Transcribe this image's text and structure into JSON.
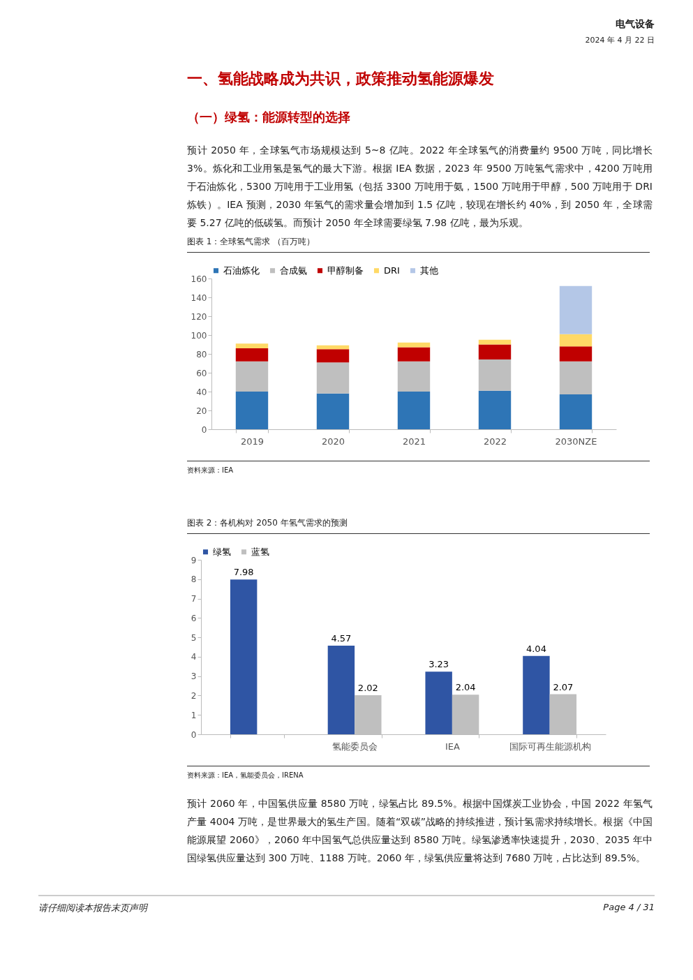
{
  "chart_data": [
    {
      "type": "bar",
      "title": "图表 1：全球氢气需求 （百万吨）",
      "stacked": true,
      "categories": [
        "2019",
        "2020",
        "2021",
        "2022",
        "2030NZE"
      ],
      "series": [
        {
          "name": "石油炼化",
          "color": "#2e75b6",
          "values": [
            40,
            38,
            40,
            41,
            37
          ]
        },
        {
          "name": "合成氨",
          "color": "#bfbfbf",
          "values": [
            32,
            33,
            32,
            33,
            35
          ]
        },
        {
          "name": "甲醇制备",
          "color": "#c00000",
          "values": [
            14,
            14,
            15,
            16,
            16
          ]
        },
        {
          "name": "DRI",
          "color": "#ffd966",
          "values": [
            5,
            4,
            5,
            5,
            13
          ]
        },
        {
          "name": "其他",
          "color": "#b4c7e7",
          "values": [
            null,
            null,
            null,
            null,
            51
          ]
        }
      ],
      "ylim": [
        0,
        160
      ],
      "yticks": [
        0,
        20,
        40,
        60,
        80,
        100,
        120,
        140,
        160
      ],
      "grid": false,
      "legend": "top",
      "annotations": [
        "资料来源：IEA",
        "电气设备",
        "2024 年 4 月 22 日",
        "一、氢能战略成为共识，政策推动氢能源爆发",
        "（一）绿氢：能源转型的选择",
        "预计 2050 年，全球氢气市场规模达到 5~8 亿吨。2022 年全球氢气的消费量约 9500 万吨，同比增长 3%。炼化和工业用氢是氢气的最大下游。根据 IEA 数据，2023 年 9500 万吨氢气需求中，4200 万吨用于石油炼化，5300 万吨用于工业用氢（包括 3300 万吨用于氨，1500 万吨用于甲醇，500 万吨用于 DRI 炼铁）。IEA 预测，2030 年氢气的需求量会增加到 1.5 亿吨，较现在增长约 40%，到 2050 年，全球需要 5.27 亿吨的低碳氢。而预计 2050 年全球需要绿氢 7.98 亿吨，最为乐观。"
      ]
    },
    {
      "type": "bar",
      "title": "图表 2：各机构对 2050 年氢气需求的预测",
      "categories": [
        null,
        "氢能委员会",
        "IEA",
        "国际可再生能源机构"
      ],
      "series": [
        {
          "name": "绿氢",
          "color": "#2f55a4",
          "values": [
            7.98,
            4.57,
            3.23,
            4.04
          ]
        },
        {
          "name": "蓝氢",
          "color": "#bfbfbf",
          "values": [
            null,
            2.02,
            2.04,
            2.07
          ]
        }
      ],
      "ylim": [
        0,
        9
      ],
      "yticks": [
        0,
        1,
        2,
        3,
        4,
        5,
        6,
        7,
        8,
        9
      ],
      "grid": false,
      "legend": "top",
      "data_labels": true,
      "annotations": [
        "资料来源：IEA，氢能委员会，IRENA",
        "预计 2060 年，中国氢供应量 8580 万吨，绿氢占比 89.5%。根据中国煤炭工业协会，中国 2022 年氢气产量 4004 万吨，是世界最大的氢生产国。随着“双碳”战略的持续推进，预计氢需求持续增长。根据《中国能源展望 2060》，2060 年中国氢气总供应量达到 8580 万吨。绿氢渗透率快速提升，2030、2035 年中国绿氢供应量达到 300 万吨、1188 万吨。2060 年，绿氢供应量将达到 7680 万吨，占比达到 89.5%。",
        "请仔细阅读本报告末页声明",
        "Page 4 / 31"
      ]
    }
  ]
}
